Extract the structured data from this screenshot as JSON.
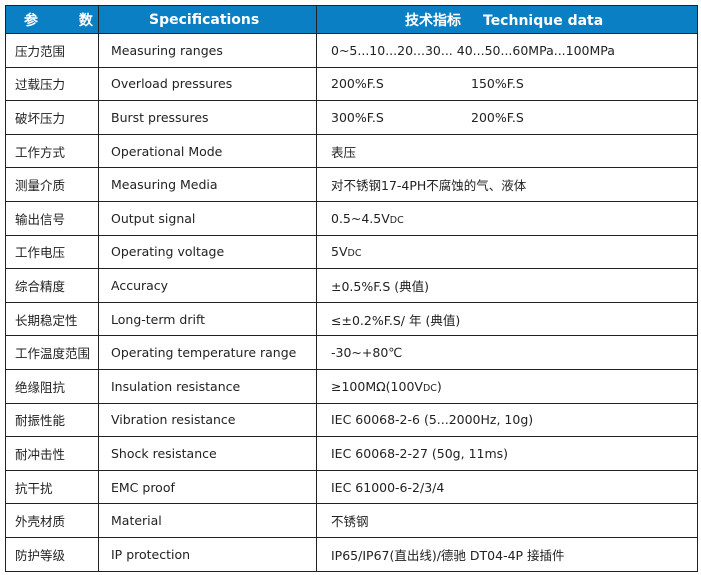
{
  "header": {
    "param": "参 数",
    "spec": "Specifications",
    "data_cn": "技术指标",
    "data_en": "Technique data"
  },
  "colors": {
    "header_bg": "#0b7fc4"
  },
  "rows": [
    {
      "param": "压力范围",
      "spec": "Measuring ranges",
      "value": "0~5...10...20...30...  40...50...60MPa...100MPa"
    },
    {
      "param": "过载压力",
      "spec": "Overload pressures",
      "value": "200%F.S",
      "value2": "150%F.S"
    },
    {
      "param": "破坏压力",
      "spec": "Burst pressures",
      "value": "300%F.S",
      "value2": "200%F.S"
    },
    {
      "param": "工作方式",
      "spec": "Operational Mode",
      "value": "表压"
    },
    {
      "param": "测量介质",
      "spec": "Measuring Media",
      "value": "对不锈钢17-4PH不腐蚀的气、液体"
    },
    {
      "param": "输出信号",
      "spec": "Output signal",
      "value": "0.5~4.5V",
      "unit": "DC"
    },
    {
      "param": "工作电压",
      "spec": "Operating voltage",
      "value": "5V",
      "unit": "DC"
    },
    {
      "param": "综合精度",
      "spec": "Accuracy",
      "value": "±0.5%F.S (典值)"
    },
    {
      "param": "长期稳定性",
      "spec": "Long-term drift",
      "value": "≤±0.2%F.S/ 年 (典值)"
    },
    {
      "param": "工作温度范围",
      "spec": "Operating temperature range",
      "value": "-30~+80℃"
    },
    {
      "param": "绝缘阻抗",
      "spec": "Insulation resistance",
      "value": "≥100MΩ(100V",
      "unit": "DC",
      "tail": ")"
    },
    {
      "param": "耐振性能",
      "spec": "Vibration resistance",
      "value": "IEC 60068-2-6 (5...2000Hz, 10g)"
    },
    {
      "param": "耐冲击性",
      "spec": "Shock resistance",
      "value": "IEC 60068-2-27 (50g, 11ms)"
    },
    {
      "param": "抗干扰",
      "spec": "EMC proof",
      "value": "IEC 61000-6-2/3/4"
    },
    {
      "param": "外壳材质",
      "spec": "Material",
      "value": "不锈钢"
    },
    {
      "param": "防护等级",
      "spec": "IP protection",
      "value": "IP65/IP67(直出线)/德驰 DT04-4P 接插件"
    }
  ]
}
